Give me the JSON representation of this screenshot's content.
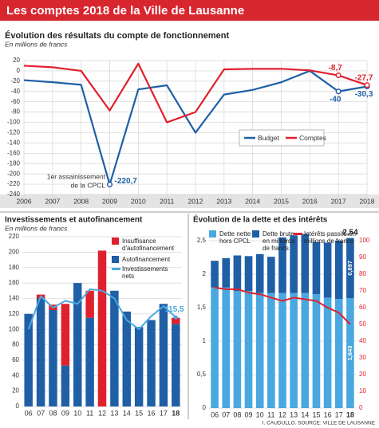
{
  "header": {
    "title": "Les comptes 2018 de la Ville de Lausanne"
  },
  "footer": {
    "credit": "I. CAUDULLO. SOURCE: VILLE DE LAUSANNE"
  },
  "chart_data": [
    {
      "type": "line",
      "title": "Évolution des résultats du compte de fonctionnement",
      "subtitle": "En millions de francs",
      "x": [
        2006,
        2007,
        2008,
        2009,
        2010,
        2011,
        2012,
        2013,
        2014,
        2015,
        2016,
        2017,
        2018
      ],
      "xlim": [
        2006,
        2018
      ],
      "ylim": [
        -240,
        20
      ],
      "yticks": [
        -240,
        -220,
        -200,
        -180,
        -160,
        -140,
        -120,
        -100,
        -80,
        -60,
        -40,
        -20,
        0,
        20
      ],
      "grid": true,
      "legend": "right",
      "annotation": [
        "1er assainissement",
        "de la CPCL"
      ],
      "series": [
        {
          "name": "Budget",
          "color": "#1f5fa6",
          "values": [
            -18,
            -22,
            -27,
            -220.7,
            -36,
            -28,
            -120,
            -46,
            -37,
            -22,
            0,
            -40,
            -30.3
          ],
          "value_labels": [
            null,
            null,
            null,
            "-220,7",
            null,
            null,
            null,
            null,
            null,
            null,
            null,
            "-40",
            "-30,3"
          ]
        },
        {
          "name": "Comptes",
          "color": "#e0202e",
          "values": [
            10,
            7,
            0,
            -77,
            14,
            -100,
            -80,
            3,
            4,
            4,
            1,
            -8.7,
            -27.7
          ],
          "value_labels": [
            null,
            null,
            null,
            null,
            null,
            null,
            null,
            null,
            null,
            null,
            null,
            "-8,7",
            "-27,7"
          ]
        }
      ]
    },
    {
      "type": "bar",
      "title": "Investissements et autofinancement",
      "subtitle": "En millions de francs",
      "categories": [
        "06",
        "07",
        "08",
        "09",
        "10",
        "11",
        "12",
        "13",
        "14",
        "15",
        "16",
        "17",
        "18"
      ],
      "ylim": [
        0,
        220
      ],
      "yticks": [
        0,
        20,
        40,
        60,
        80,
        100,
        120,
        140,
        160,
        180,
        200,
        220
      ],
      "grid": true,
      "stacked": true,
      "series": [
        {
          "name": "Insuffisance d'autofinancement",
          "color": "#e0202e",
          "values": [
            0,
            5,
            7,
            80,
            0,
            35,
            202,
            0,
            0,
            0,
            0,
            0,
            8
          ]
        },
        {
          "name": "Autofinancement",
          "color": "#1f5fa6",
          "values": [
            120,
            140,
            125,
            53,
            160,
            115,
            0,
            150,
            123,
            103,
            112,
            133,
            107
          ]
        },
        {
          "name": "Investissements nets",
          "type": "line",
          "color": "#4aa8e0",
          "values": [
            100,
            143,
            128,
            137,
            133,
            152,
            150,
            140,
            112,
            100,
            117,
            130,
            115.5
          ],
          "value_labels": [
            null,
            null,
            null,
            null,
            null,
            null,
            null,
            null,
            null,
            null,
            null,
            null,
            "115,5"
          ]
        }
      ]
    },
    {
      "type": "bar",
      "title": "Évolution de la dette et des intérêts",
      "categories": [
        "06",
        "07",
        "08",
        "09",
        "10",
        "11",
        "12",
        "13",
        "14",
        "15",
        "16",
        "17",
        "18"
      ],
      "ylim": [
        0,
        2.6
      ],
      "yticks": [
        0,
        {
          "value": 0.5,
          "label": "0,5"
        },
        1,
        {
          "value": 1.5,
          "label": "1,5"
        },
        2,
        {
          "value": 2.5,
          "label": "2,5"
        }
      ],
      "y2lim": [
        0,
        104
      ],
      "y2ticks": [
        0,
        10,
        20,
        30,
        40,
        50,
        60,
        70,
        80,
        90,
        100
      ],
      "grid": true,
      "stacked": true,
      "total_value_labels": [
        null,
        null,
        null,
        null,
        null,
        null,
        null,
        null,
        null,
        null,
        null,
        null,
        "2,54"
      ],
      "series": [
        {
          "name": "Dette nette hors CPCL",
          "color": "#4aa8e0",
          "values": [
            1.8,
            1.8,
            1.75,
            1.75,
            1.72,
            1.72,
            1.72,
            1.72,
            1.72,
            1.7,
            1.65,
            1.63,
            1.643
          ],
          "value_labels": [
            null,
            null,
            null,
            null,
            null,
            null,
            null,
            null,
            null,
            null,
            null,
            null,
            "1,643"
          ]
        },
        {
          "name": "Dette brute en milliards de francs",
          "color": "#1f5fa6",
          "values": [
            0.4,
            0.44,
            0.53,
            0.52,
            0.58,
            0.54,
            0.83,
            0.86,
            0.88,
            0.78,
            0.82,
            0.87,
            0.897
          ],
          "value_labels": [
            null,
            null,
            null,
            null,
            null,
            null,
            null,
            null,
            null,
            null,
            null,
            null,
            "0,897"
          ]
        },
        {
          "name": "Intérêts passifs en millions de francs",
          "type": "line",
          "axis": "y2",
          "color": "#e0202e",
          "values": [
            72,
            71,
            71,
            69,
            68,
            66,
            64,
            66,
            65,
            64,
            60,
            57,
            50
          ]
        }
      ]
    }
  ]
}
